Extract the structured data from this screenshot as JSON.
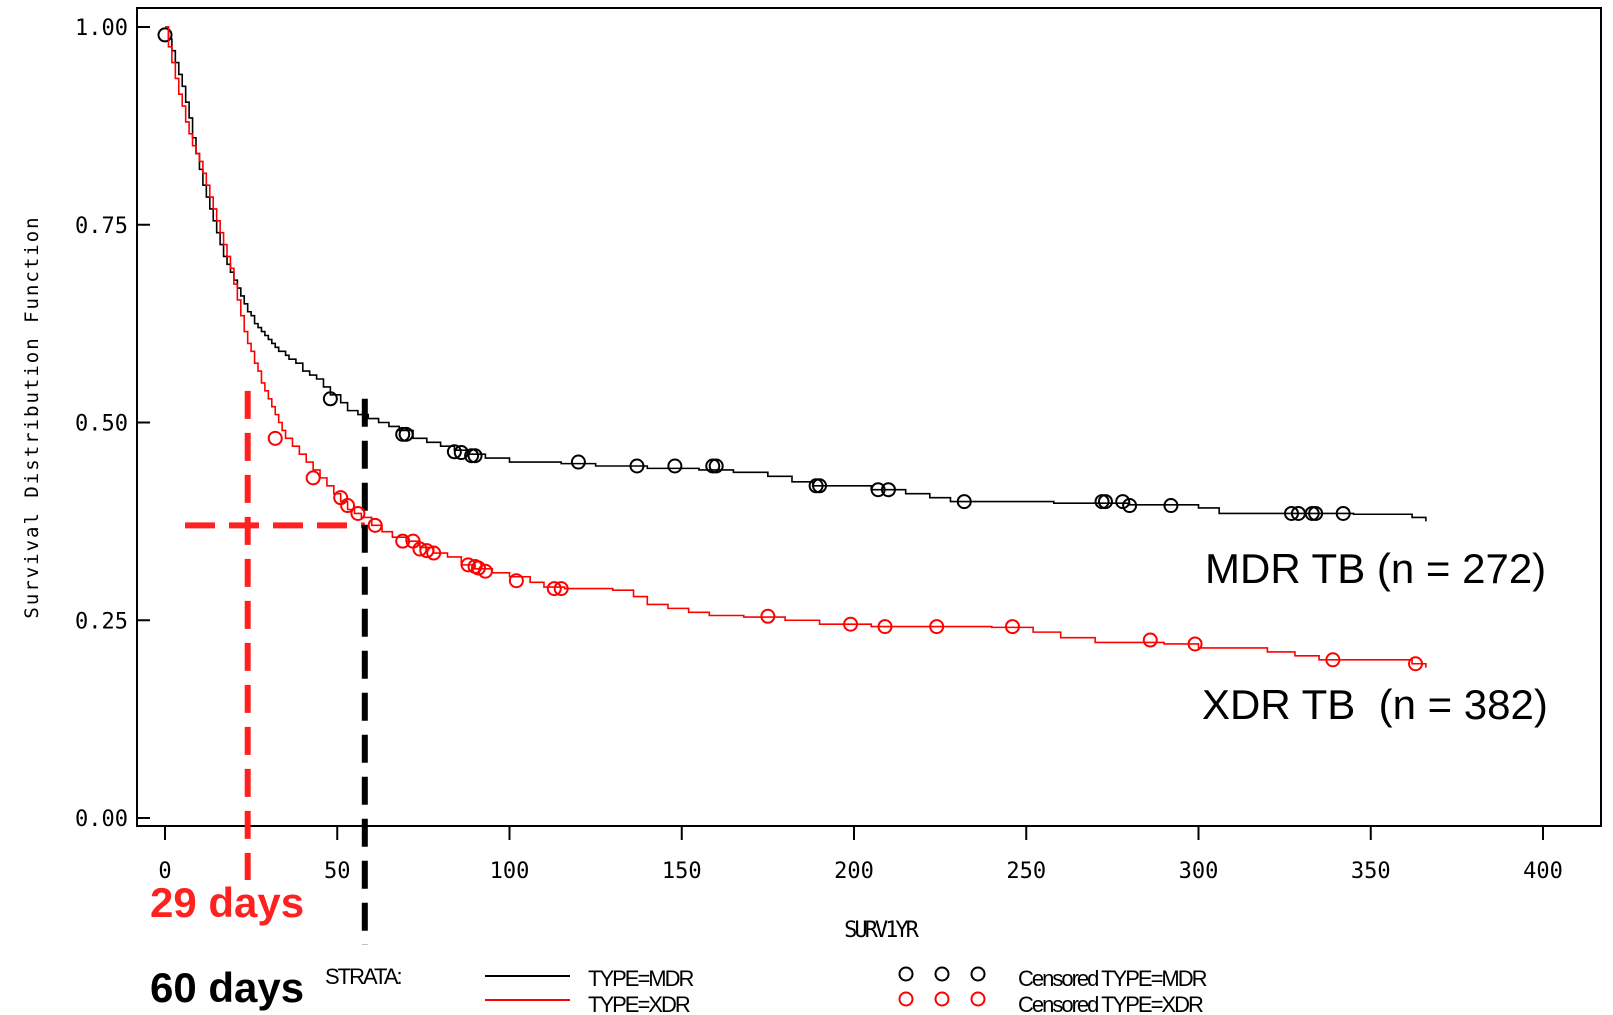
{
  "chart_data": {
    "type": "line",
    "subtype": "kaplan-meier",
    "title": "",
    "xlabel": "SURV1YR",
    "ylabel": "Survival Distribution Function",
    "xlim": [
      0,
      400
    ],
    "ylim": [
      0,
      1
    ],
    "xticks": [
      "0",
      "50",
      "100",
      "150",
      "200",
      "250",
      "300",
      "350",
      "400"
    ],
    "yticks": [
      "0.00",
      "0.25",
      "0.50",
      "0.75",
      "1.00"
    ],
    "legend_title": "STRATA:",
    "legend_position": "bottom",
    "series": [
      {
        "name": "TYPE=MDR",
        "censored_name": "Censored TYPE=MDR",
        "color": "#000000",
        "steps": [
          [
            0,
            1.0
          ],
          [
            1,
            0.985
          ],
          [
            2,
            0.97
          ],
          [
            3,
            0.955
          ],
          [
            4,
            0.94
          ],
          [
            5,
            0.925
          ],
          [
            6,
            0.905
          ],
          [
            7,
            0.885
          ],
          [
            8,
            0.86
          ],
          [
            9,
            0.84
          ],
          [
            10,
            0.82
          ],
          [
            11,
            0.8
          ],
          [
            12,
            0.785
          ],
          [
            13,
            0.77
          ],
          [
            14,
            0.755
          ],
          [
            15,
            0.74
          ],
          [
            16,
            0.725
          ],
          [
            17,
            0.71
          ],
          [
            18,
            0.7
          ],
          [
            19,
            0.69
          ],
          [
            20,
            0.68
          ],
          [
            21,
            0.67
          ],
          [
            22,
            0.66
          ],
          [
            23,
            0.65
          ],
          [
            24,
            0.64
          ],
          [
            25,
            0.635
          ],
          [
            26,
            0.625
          ],
          [
            27,
            0.62
          ],
          [
            28,
            0.615
          ],
          [
            29,
            0.61
          ],
          [
            30,
            0.605
          ],
          [
            31,
            0.6
          ],
          [
            32,
            0.595
          ],
          [
            33,
            0.59
          ],
          [
            35,
            0.585
          ],
          [
            36,
            0.58
          ],
          [
            38,
            0.575
          ],
          [
            40,
            0.565
          ],
          [
            42,
            0.56
          ],
          [
            44,
            0.555
          ],
          [
            46,
            0.545
          ],
          [
            48,
            0.535
          ],
          [
            51,
            0.525
          ],
          [
            53,
            0.515
          ],
          [
            56,
            0.51
          ],
          [
            59,
            0.505
          ],
          [
            62,
            0.5
          ],
          [
            65,
            0.495
          ],
          [
            68,
            0.49
          ],
          [
            72,
            0.48
          ],
          [
            76,
            0.475
          ],
          [
            80,
            0.47
          ],
          [
            84,
            0.465
          ],
          [
            88,
            0.46
          ],
          [
            93,
            0.455
          ],
          [
            100,
            0.45
          ],
          [
            115,
            0.448
          ],
          [
            125,
            0.445
          ],
          [
            140,
            0.442
          ],
          [
            155,
            0.44
          ],
          [
            165,
            0.437
          ],
          [
            175,
            0.432
          ],
          [
            182,
            0.425
          ],
          [
            188,
            0.42
          ],
          [
            205,
            0.415
          ],
          [
            215,
            0.41
          ],
          [
            222,
            0.405
          ],
          [
            228,
            0.4
          ],
          [
            258,
            0.398
          ],
          [
            280,
            0.396
          ],
          [
            300,
            0.392
          ],
          [
            306,
            0.385
          ],
          [
            345,
            0.384
          ],
          [
            362,
            0.38
          ],
          [
            366,
            0.375
          ]
        ],
        "censored": [
          [
            0,
            0.99
          ],
          [
            48,
            0.53
          ],
          [
            69,
            0.485
          ],
          [
            70,
            0.485
          ],
          [
            84,
            0.463
          ],
          [
            86,
            0.462
          ],
          [
            89,
            0.458
          ],
          [
            90,
            0.458
          ],
          [
            120,
            0.45
          ],
          [
            137,
            0.445
          ],
          [
            148,
            0.445
          ],
          [
            159,
            0.445
          ],
          [
            160,
            0.445
          ],
          [
            189,
            0.42
          ],
          [
            190,
            0.42
          ],
          [
            207,
            0.415
          ],
          [
            210,
            0.415
          ],
          [
            232,
            0.4
          ],
          [
            272,
            0.4
          ],
          [
            273,
            0.4
          ],
          [
            278,
            0.4
          ],
          [
            280,
            0.395
          ],
          [
            292,
            0.395
          ],
          [
            327,
            0.385
          ],
          [
            329,
            0.385
          ],
          [
            333,
            0.385
          ],
          [
            334,
            0.385
          ],
          [
            342,
            0.385
          ]
        ]
      },
      {
        "name": "TYPE=XDR",
        "censored_name": "Censored TYPE=XDR",
        "color": "#ff0000",
        "steps": [
          [
            0,
            1.0
          ],
          [
            1,
            0.975
          ],
          [
            2,
            0.955
          ],
          [
            3,
            0.935
          ],
          [
            4,
            0.915
          ],
          [
            5,
            0.9
          ],
          [
            6,
            0.88
          ],
          [
            7,
            0.865
          ],
          [
            8,
            0.85
          ],
          [
            9,
            0.84
          ],
          [
            10,
            0.83
          ],
          [
            11,
            0.815
          ],
          [
            12,
            0.8
          ],
          [
            13,
            0.785
          ],
          [
            14,
            0.77
          ],
          [
            15,
            0.755
          ],
          [
            16,
            0.74
          ],
          [
            17,
            0.725
          ],
          [
            18,
            0.71
          ],
          [
            19,
            0.695
          ],
          [
            20,
            0.675
          ],
          [
            21,
            0.655
          ],
          [
            22,
            0.635
          ],
          [
            23,
            0.615
          ],
          [
            24,
            0.6
          ],
          [
            25,
            0.59
          ],
          [
            26,
            0.575
          ],
          [
            27,
            0.565
          ],
          [
            28,
            0.55
          ],
          [
            29,
            0.54
          ],
          [
            30,
            0.53
          ],
          [
            31,
            0.52
          ],
          [
            32,
            0.51
          ],
          [
            33,
            0.5
          ],
          [
            34,
            0.49
          ],
          [
            35,
            0.48
          ],
          [
            37,
            0.47
          ],
          [
            39,
            0.46
          ],
          [
            41,
            0.45
          ],
          [
            43,
            0.44
          ],
          [
            45,
            0.43
          ],
          [
            47,
            0.42
          ],
          [
            49,
            0.41
          ],
          [
            51,
            0.4
          ],
          [
            53,
            0.39
          ],
          [
            55,
            0.385
          ],
          [
            57,
            0.38
          ],
          [
            60,
            0.37
          ],
          [
            63,
            0.362
          ],
          [
            66,
            0.355
          ],
          [
            70,
            0.35
          ],
          [
            74,
            0.342
          ],
          [
            78,
            0.335
          ],
          [
            82,
            0.33
          ],
          [
            86,
            0.32
          ],
          [
            90,
            0.315
          ],
          [
            95,
            0.31
          ],
          [
            100,
            0.305
          ],
          [
            106,
            0.298
          ],
          [
            110,
            0.292
          ],
          [
            116,
            0.29
          ],
          [
            130,
            0.288
          ],
          [
            136,
            0.28
          ],
          [
            140,
            0.27
          ],
          [
            146,
            0.265
          ],
          [
            152,
            0.26
          ],
          [
            158,
            0.256
          ],
          [
            168,
            0.254
          ],
          [
            180,
            0.25
          ],
          [
            190,
            0.245
          ],
          [
            205,
            0.242
          ],
          [
            240,
            0.241
          ],
          [
            252,
            0.235
          ],
          [
            260,
            0.228
          ],
          [
            270,
            0.222
          ],
          [
            290,
            0.22
          ],
          [
            300,
            0.215
          ],
          [
            320,
            0.21
          ],
          [
            328,
            0.205
          ],
          [
            335,
            0.2
          ],
          [
            362,
            0.195
          ],
          [
            366,
            0.19
          ]
        ],
        "censored": [
          [
            32,
            0.48
          ],
          [
            43,
            0.43
          ],
          [
            51,
            0.405
          ],
          [
            53,
            0.395
          ],
          [
            56,
            0.385
          ],
          [
            61,
            0.37
          ],
          [
            69,
            0.35
          ],
          [
            72,
            0.35
          ],
          [
            74,
            0.34
          ],
          [
            76,
            0.338
          ],
          [
            78,
            0.335
          ],
          [
            88,
            0.32
          ],
          [
            90,
            0.318
          ],
          [
            91,
            0.316
          ],
          [
            93,
            0.312
          ],
          [
            102,
            0.3
          ],
          [
            113,
            0.29
          ],
          [
            115,
            0.29
          ],
          [
            175,
            0.255
          ],
          [
            199,
            0.245
          ],
          [
            209,
            0.242
          ],
          [
            224,
            0.242
          ],
          [
            246,
            0.242
          ],
          [
            286,
            0.225
          ],
          [
            299,
            0.22
          ],
          [
            339,
            0.2
          ],
          [
            363,
            0.195
          ]
        ]
      }
    ],
    "annotations": [
      {
        "text": "MDR TB (n = 272)",
        "color": "#000000"
      },
      {
        "text": "XDR TB  (n = 382)",
        "color": "#000000"
      },
      {
        "text": "29 days",
        "color": "#ff2020",
        "x": 24,
        "y": 0.37
      },
      {
        "text": "60 days",
        "color": "#000000",
        "x": 58,
        "y": 0.37
      }
    ]
  }
}
